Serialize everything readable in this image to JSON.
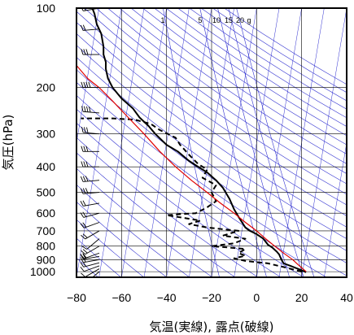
{
  "chart_data": {
    "type": "line",
    "title": "",
    "xlabel": "気温(実線), 露点(破線)",
    "ylabel": "気圧(hPa)",
    "x_scale": "linear",
    "y_scale": "log",
    "y_inverted": true,
    "xlim": [
      -80,
      40
    ],
    "ylim": [
      1050,
      100
    ],
    "x_ticks": [
      -80,
      -60,
      -40,
      -20,
      0,
      20,
      40
    ],
    "y_ticks": [
      100,
      200,
      300,
      400,
      500,
      600,
      700,
      800,
      900,
      1000
    ],
    "x_tick_labels": [
      "−80",
      "−60",
      "−40",
      "−20",
      "0",
      "20",
      "40"
    ],
    "y_tick_labels": [
      "100",
      "200",
      "300",
      "400",
      "500",
      "600",
      "700",
      "800",
      "900",
      "1000"
    ],
    "mixing_ratio_labels": [
      "1",
      "5",
      "10",
      "15",
      "20",
      "g"
    ],
    "mixing_ratio_values": [
      1,
      5,
      10,
      15,
      20
    ],
    "grid": true,
    "colors": {
      "temperature": "#000000",
      "dewpoint": "#000000",
      "parcel": "#e00000",
      "adiabats": "#3030d0",
      "grid": "#000000"
    },
    "series": [
      {
        "style": "solid",
        "color": "#000000",
        "points": [
          [
            22,
            1005
          ],
          [
            19,
            980
          ],
          [
            15,
            950
          ],
          [
            12,
            930
          ],
          [
            11,
            900
          ],
          [
            10,
            860
          ],
          [
            9,
            840
          ],
          [
            7,
            810
          ],
          [
            5,
            790
          ],
          [
            3,
            750
          ],
          [
            0,
            720
          ],
          [
            -3,
            700
          ],
          [
            -5,
            680
          ],
          [
            -8,
            620
          ],
          [
            -10,
            580
          ],
          [
            -12,
            530
          ],
          [
            -15,
            480
          ],
          [
            -18,
            450
          ],
          [
            -22,
            420
          ],
          [
            -26,
            400
          ],
          [
            -30,
            380
          ],
          [
            -35,
            350
          ],
          [
            -40,
            330
          ],
          [
            -45,
            300
          ],
          [
            -48,
            280
          ],
          [
            -52,
            260
          ],
          [
            -55,
            240
          ],
          [
            -60,
            220
          ],
          [
            -64,
            200
          ],
          [
            -66,
            185
          ],
          [
            -67,
            170
          ],
          [
            -67,
            160
          ],
          [
            -68,
            150
          ],
          [
            -68,
            140
          ],
          [
            -69,
            125
          ],
          [
            -71,
            115
          ],
          [
            -72,
            105
          ],
          [
            -73,
            100
          ]
        ]
      },
      {
        "style": "dashed",
        "color": "#000000",
        "points": [
          [
            20,
            1000
          ],
          [
            12,
            960
          ],
          [
            5,
            930
          ],
          [
            -5,
            910
          ],
          [
            -10,
            890
          ],
          [
            -5,
            870
          ],
          [
            -8,
            850
          ],
          [
            -5,
            820
          ],
          [
            -20,
            800
          ],
          [
            -10,
            780
          ],
          [
            -5,
            750
          ],
          [
            -15,
            730
          ],
          [
            -8,
            700
          ],
          [
            -22,
            680
          ],
          [
            -30,
            660
          ],
          [
            -25,
            640
          ],
          [
            -35,
            620
          ],
          [
            -40,
            610
          ],
          [
            -27,
            600
          ],
          [
            -22,
            570
          ],
          [
            -18,
            540
          ],
          [
            -20,
            500
          ],
          [
            -18,
            470
          ],
          [
            -24,
            440
          ],
          [
            -22,
            410
          ],
          [
            -26,
            390
          ],
          [
            -30,
            360
          ],
          [
            -34,
            330
          ],
          [
            -36,
            310
          ],
          [
            -43,
            290
          ],
          [
            -47,
            275
          ],
          [
            -54,
            265
          ],
          [
            -64,
            262
          ],
          [
            -78,
            262
          ]
        ]
      },
      {
        "style": "solid",
        "color": "#e00000",
        "points": [
          [
            22,
            1000
          ],
          [
            19,
            950
          ],
          [
            16,
            900
          ],
          [
            12,
            850
          ],
          [
            8,
            800
          ],
          [
            4,
            750
          ],
          [
            0,
            700
          ],
          [
            -5,
            650
          ],
          [
            -10,
            600
          ],
          [
            -16,
            550
          ],
          [
            -22,
            500
          ],
          [
            -29,
            450
          ],
          [
            -36,
            400
          ],
          [
            -43,
            350
          ],
          [
            -50,
            300
          ],
          [
            -57,
            260
          ],
          [
            -64,
            225
          ],
          [
            -70,
            200
          ],
          [
            -75,
            185
          ],
          [
            -80,
            165
          ]
        ]
      }
    ],
    "wind_barbs": [
      {
        "p": 1000,
        "dir": 230,
        "spd": 10
      },
      {
        "p": 975,
        "dir": 240,
        "spd": 12
      },
      {
        "p": 950,
        "dir": 250,
        "spd": 14
      },
      {
        "p": 925,
        "dir": 255,
        "spd": 16
      },
      {
        "p": 900,
        "dir": 260,
        "spd": 18
      },
      {
        "p": 875,
        "dir": 260,
        "spd": 20
      },
      {
        "p": 850,
        "dir": 250,
        "spd": 18
      },
      {
        "p": 800,
        "dir": 240,
        "spd": 15
      },
      {
        "p": 750,
        "dir": 230,
        "spd": 14
      },
      {
        "p": 700,
        "dir": 240,
        "spd": 17
      },
      {
        "p": 650,
        "dir": 250,
        "spd": 20
      },
      {
        "p": 600,
        "dir": 255,
        "spd": 22
      },
      {
        "p": 550,
        "dir": 260,
        "spd": 24
      },
      {
        "p": 500,
        "dir": 265,
        "spd": 26
      },
      {
        "p": 450,
        "dir": 265,
        "spd": 28
      },
      {
        "p": 400,
        "dir": 270,
        "spd": 30
      },
      {
        "p": 350,
        "dir": 270,
        "spd": 32
      },
      {
        "p": 300,
        "dir": 275,
        "spd": 34
      },
      {
        "p": 250,
        "dir": 275,
        "spd": 36
      },
      {
        "p": 200,
        "dir": 270,
        "spd": 38
      },
      {
        "p": 150,
        "dir": 270,
        "spd": 30
      },
      {
        "p": 120,
        "dir": 265,
        "spd": 24
      },
      {
        "p": 100,
        "dir": 260,
        "spd": 20
      }
    ]
  }
}
